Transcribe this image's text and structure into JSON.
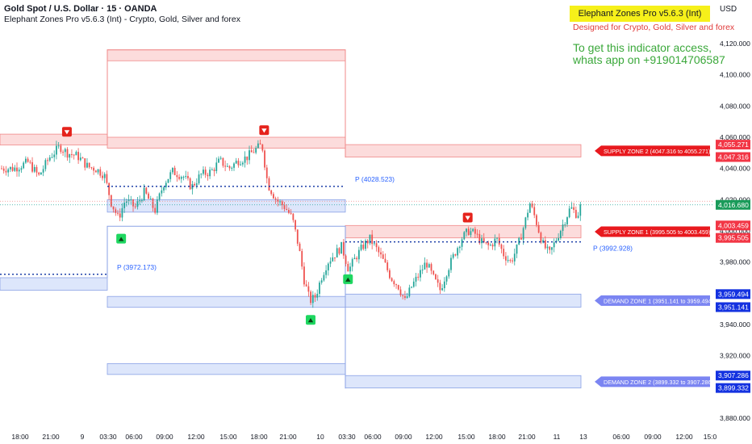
{
  "header": {
    "symbol": "Gold Spot / U.S. Dollar · 15 · OANDA",
    "indicator": "Elephant Zones Pro v5.6.3 (Int) - Crypto, Gold, Silver and forex",
    "currency": "USD"
  },
  "overlay": {
    "badge": "Elephant Zones Pro v5.6.3 (Int)",
    "subtitle": "Designed for Crypto, Gold, Silver and forex",
    "promo": "To get this indicator access, whats app on +919014706587"
  },
  "colors": {
    "up": "#26a69a",
    "down": "#ef5350",
    "supply": "#f23645",
    "demand": "#2962ff",
    "supply_fill": "#fcdcdc",
    "demand_fill": "#dde6fb"
  },
  "chart_data": {
    "type": "candlestick",
    "ylim": [
      3870,
      4130
    ],
    "y_ticks": [
      3880,
      3900,
      3920,
      3940,
      3960,
      3980,
      4000,
      4020,
      4040,
      4060,
      4080,
      4100,
      4120
    ],
    "y_tick_labels": [
      "3,880.000",
      "3,900.000",
      "3,920.000",
      "3,940.000",
      "3,960.000",
      "3,980.000",
      "4,000.000",
      "4,020.000",
      "4,040.000",
      "4,060.000",
      "4,080.000",
      "4,100.000",
      "4,120.000"
    ],
    "x_tick_labels": [
      "18:00",
      "21:00",
      "9",
      "03:30",
      "06:00",
      "09:00",
      "12:00",
      "15:00",
      "18:00",
      "21:00",
      "10",
      "03:30",
      "06:00",
      "09:00",
      "12:00",
      "15:00",
      "18:00",
      "21:00",
      "11",
      "13",
      "06:00",
      "09:00",
      "12:00",
      "15:0"
    ],
    "last_price": 4016.68,
    "last_price_label": "4,016.680",
    "supply_zones": [
      {
        "label": "SUPPLY ZONE 2 (4047.316 to 4055.271)",
        "low": 4047.316,
        "high": 4055.271,
        "low_label": "4,047.316",
        "high_label": "4,055.271"
      },
      {
        "label": "SUPPLY ZONE 1 (3995.505 to 4003.459)",
        "low": 3995.505,
        "high": 4003.459,
        "low_label": "3,995.505",
        "high_label": "4,003.459"
      }
    ],
    "demand_zones": [
      {
        "label": "DEMAND ZONE 1 (3951.141 to 3959.494)",
        "low": 3951.141,
        "high": 3959.494,
        "low_label": "3,951.141",
        "high_label": "3,959.494"
      },
      {
        "label": "DEMAND ZONE 2 (3899.332 to 3907.286)",
        "low": 3899.332,
        "high": 3907.286,
        "low_label": "3,899.332",
        "high_label": "3,907.286"
      }
    ],
    "pivots": [
      {
        "label": "P (3972.173)",
        "value": 3972.173
      },
      {
        "label": "P (4028.523)",
        "value": 4028.523
      },
      {
        "label": "P (3992.928)",
        "value": 3992.928
      }
    ],
    "historical_zones": [
      {
        "kind": "supply",
        "session": 1,
        "low": 4055,
        "high": 4062
      },
      {
        "kind": "demand",
        "session": 1,
        "low": 3962,
        "high": 3970
      },
      {
        "kind": "supply",
        "session": 2,
        "low": 4109,
        "high": 4116
      },
      {
        "kind": "supply",
        "session": 2,
        "low": 4053,
        "high": 4060
      },
      {
        "kind": "demand",
        "session": 2,
        "low": 4012,
        "high": 4020
      },
      {
        "kind": "demand",
        "session": 2,
        "low": 3951,
        "high": 3958
      },
      {
        "kind": "demand",
        "session": 2,
        "low": 3908,
        "high": 3915
      }
    ],
    "session_edges": {
      "supply": [
        [
          1,
          4055
        ],
        [
          1,
          4116
        ],
        [
          2,
          4116
        ],
        [
          2,
          4047
        ]
      ],
      "demand": [
        [
          1,
          3970
        ],
        [
          1,
          4003
        ],
        [
          2,
          4003
        ],
        [
          2,
          3899
        ]
      ]
    },
    "signals": [
      {
        "type": "sell",
        "x": 0.095,
        "y": 4063
      },
      {
        "type": "buy",
        "x": 0.172,
        "y": 3995
      },
      {
        "type": "sell",
        "x": 0.375,
        "y": 4064
      },
      {
        "type": "buy",
        "x": 0.441,
        "y": 3943
      },
      {
        "type": "buy",
        "x": 0.494,
        "y": 3969
      },
      {
        "type": "sell",
        "x": 0.664,
        "y": 4008
      }
    ],
    "price_path": [
      [
        0.0,
        4040
      ],
      [
        0.02,
        4040
      ],
      [
        0.04,
        4044
      ],
      [
        0.055,
        4035
      ],
      [
        0.07,
        4047
      ],
      [
        0.085,
        4054
      ],
      [
        0.095,
        4050
      ],
      [
        0.11,
        4048
      ],
      [
        0.125,
        4041
      ],
      [
        0.135,
        4040
      ],
      [
        0.148,
        4036
      ],
      [
        0.158,
        4018
      ],
      [
        0.168,
        4008
      ],
      [
        0.178,
        4020
      ],
      [
        0.192,
        4015
      ],
      [
        0.205,
        4025
      ],
      [
        0.22,
        4013
      ],
      [
        0.232,
        4030
      ],
      [
        0.245,
        4038
      ],
      [
        0.26,
        4035
      ],
      [
        0.272,
        4028
      ],
      [
        0.285,
        4036
      ],
      [
        0.3,
        4038
      ],
      [
        0.312,
        4045
      ],
      [
        0.325,
        4040
      ],
      [
        0.338,
        4045
      ],
      [
        0.35,
        4047
      ],
      [
        0.362,
        4052
      ],
      [
        0.372,
        4055
      ],
      [
        0.38,
        4030
      ],
      [
        0.392,
        4020
      ],
      [
        0.405,
        4015
      ],
      [
        0.415,
        4008
      ],
      [
        0.424,
        3990
      ],
      [
        0.432,
        3968
      ],
      [
        0.44,
        3955
      ],
      [
        0.448,
        3958
      ],
      [
        0.456,
        3970
      ],
      [
        0.465,
        3980
      ],
      [
        0.475,
        3985
      ],
      [
        0.485,
        3990
      ],
      [
        0.495,
        3975
      ],
      [
        0.505,
        3983
      ],
      [
        0.515,
        3990
      ],
      [
        0.525,
        3995
      ],
      [
        0.535,
        3988
      ],
      [
        0.545,
        3980
      ],
      [
        0.555,
        3970
      ],
      [
        0.565,
        3965
      ],
      [
        0.575,
        3955
      ],
      [
        0.585,
        3965
      ],
      [
        0.595,
        3972
      ],
      [
        0.605,
        3980
      ],
      [
        0.615,
        3970
      ],
      [
        0.625,
        3962
      ],
      [
        0.635,
        3975
      ],
      [
        0.645,
        3985
      ],
      [
        0.655,
        3995
      ],
      [
        0.665,
        4000
      ],
      [
        0.675,
        3998
      ],
      [
        0.685,
        3992
      ],
      [
        0.695,
        3990
      ],
      [
        0.705,
        3995
      ],
      [
        0.715,
        3985
      ],
      [
        0.725,
        3980
      ],
      [
        0.735,
        3990
      ],
      [
        0.745,
        4005
      ],
      [
        0.752,
        4018
      ],
      [
        0.76,
        4008
      ],
      [
        0.77,
        3992
      ],
      [
        0.78,
        3985
      ],
      [
        0.79,
        3995
      ],
      [
        0.8,
        4005
      ],
      [
        0.81,
        4015
      ],
      [
        0.82,
        4010
      ],
      [
        0.825,
        4017
      ]
    ]
  }
}
